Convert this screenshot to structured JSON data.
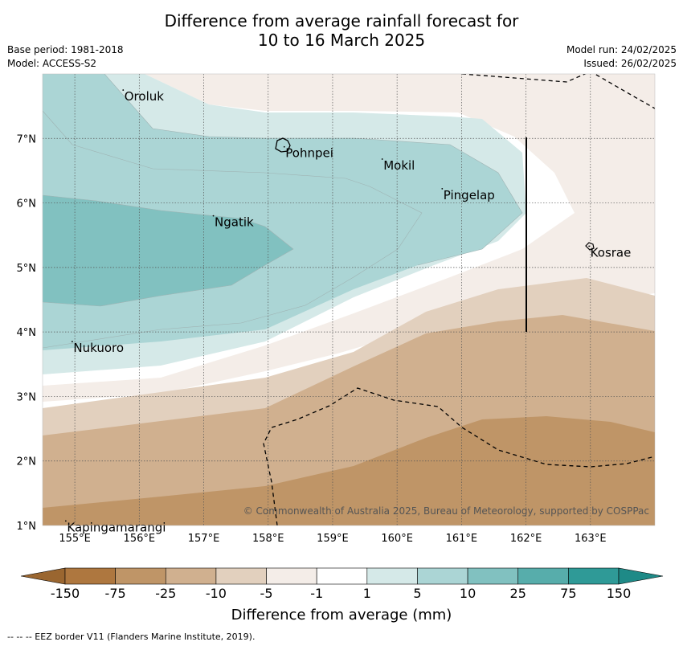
{
  "title": {
    "line1": "Difference from average rainfall forecast for",
    "line2": "10 to 16 March 2025"
  },
  "meta_left": {
    "base_period": "Base period: 1981-2018",
    "model": "Model: ACCESS-S2"
  },
  "meta_right": {
    "model_run": "Model run: 24/02/2025",
    "issued": "Issued: 26/02/2025"
  },
  "map": {
    "lon_range": [
      154.5,
      164.0
    ],
    "lat_range": [
      1.0,
      8.0
    ],
    "lon_ticks": [
      "155°E",
      "156°E",
      "157°E",
      "158°E",
      "159°E",
      "160°E",
      "161°E",
      "162°E",
      "163°E"
    ],
    "lat_ticks": [
      "1°N",
      "2°N",
      "3°N",
      "4°N",
      "5°N",
      "6°N",
      "7°N"
    ],
    "gridlines": true,
    "places": [
      {
        "name": "Oroluk",
        "lon": 155.75,
        "lat": 7.75
      },
      {
        "name": "Pohnpei",
        "lon": 158.25,
        "lat": 6.87
      },
      {
        "name": "Mokil",
        "lon": 159.77,
        "lat": 6.68
      },
      {
        "name": "Pingelap",
        "lon": 160.7,
        "lat": 6.22
      },
      {
        "name": "Ngatik",
        "lon": 157.15,
        "lat": 5.8
      },
      {
        "name": "Kosrae",
        "lon": 162.98,
        "lat": 5.33
      },
      {
        "name": "Nukuoro",
        "lon": 154.96,
        "lat": 3.85
      },
      {
        "name": "Kapingamarangi",
        "lon": 154.86,
        "lat": 1.07
      }
    ],
    "attribution": "© Commonwealth of Australia 2025, Bureau of Meteorology, supported by COSPPac"
  },
  "colorbar": {
    "colors": [
      "#ae773f",
      "#bf9567",
      "#d0b08f",
      "#e2d0be",
      "#f4ede8",
      "#ffffff",
      "#d5e9e8",
      "#abd5d5",
      "#81c1c0",
      "#57adab",
      "#2f9a97"
    ],
    "labels": [
      "-150",
      "-75",
      "-25",
      "-10",
      "-5",
      "-1",
      "1",
      "5",
      "10",
      "25",
      "75",
      "150"
    ],
    "title": "Difference from average (mm)"
  },
  "footer": "--  --  -- EEZ border V11 (Flanders Marine Institute, 2019)."
}
